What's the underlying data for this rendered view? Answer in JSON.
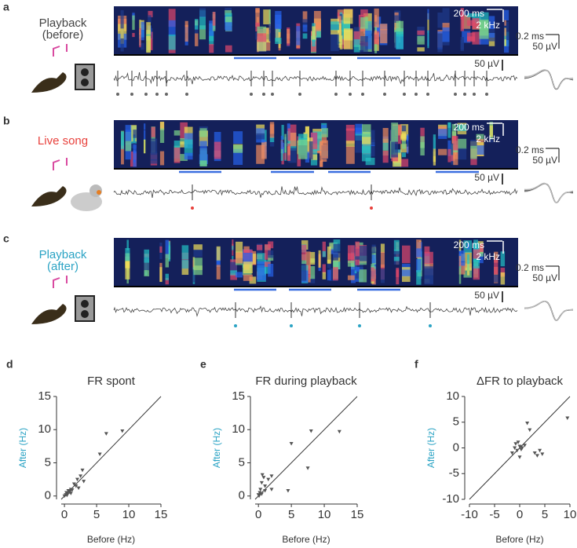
{
  "panels": [
    {
      "label": "a",
      "condition": [
        "Playback",
        "(before)"
      ],
      "condition_color": "#444444",
      "scale": {
        "time": "200 ms",
        "freq": "2 kHz",
        "voltage": "50 µV",
        "wave_time": "0.2 ms",
        "wave_voltage": "50 µV"
      }
    },
    {
      "label": "b",
      "condition": [
        "Live song"
      ],
      "condition_color": "#e8413c",
      "scale": {
        "time": "200 ms",
        "freq": "2 kHz",
        "voltage": "50 µV",
        "wave_time": "0.2 ms",
        "wave_voltage": "50 µV"
      }
    },
    {
      "label": "c",
      "condition": [
        "Playback",
        "(after)"
      ],
      "condition_color": "#2aa3c4",
      "scale": {
        "time": "200 ms",
        "freq": "2 kHz",
        "voltage": "50 µV",
        "wave_time": "0.2 ms",
        "wave_voltage": "50 µV"
      }
    }
  ],
  "chart_data": [
    {
      "type": "scatter",
      "panel_label": "d",
      "title": "FR spont",
      "xlabel": "Before (Hz)",
      "ylabel": "After (Hz)",
      "color": "#555555",
      "x": [
        0,
        0.2,
        0.3,
        0.5,
        0.6,
        0.8,
        1,
        1.2,
        1.5,
        1.8,
        2,
        2.2,
        2.5,
        2.8,
        3,
        5.5,
        6.5,
        9,
        0.4,
        1
      ],
      "y": [
        0,
        0.2,
        0.5,
        0.3,
        0.8,
        0.6,
        1,
        0.9,
        1.8,
        1.5,
        2.5,
        1.2,
        3,
        3.9,
        2.2,
        6.3,
        9.4,
        9.8,
        0.1,
        0.4
      ],
      "xlim": [
        -0.5,
        15
      ],
      "ylim": [
        -0.5,
        15
      ],
      "xticks": [
        0,
        5,
        10,
        15
      ],
      "yticks": [
        0,
        5,
        10,
        15
      ]
    },
    {
      "type": "scatter",
      "panel_label": "e",
      "title": "FR during playback",
      "xlabel": "Before (Hz)",
      "ylabel": "After (Hz)",
      "color": "#555555",
      "x": [
        0,
        0.2,
        0.3,
        0.5,
        0.8,
        1,
        1.5,
        2,
        0.1,
        0.5,
        1,
        4.5,
        5,
        7.5,
        8,
        12.3,
        2,
        0.6
      ],
      "y": [
        0.2,
        0.5,
        1,
        2,
        2.8,
        1.5,
        2.5,
        3,
        0,
        0.3,
        0.8,
        0.8,
        7.9,
        4.2,
        9.8,
        9.7,
        1,
        3.2
      ],
      "xlim": [
        -0.5,
        15
      ],
      "ylim": [
        -0.5,
        15
      ],
      "xticks": [
        0,
        5,
        10,
        15
      ],
      "yticks": [
        0,
        5,
        10,
        15
      ]
    },
    {
      "type": "scatter",
      "panel_label": "f",
      "title": "ΔFR to playback",
      "xlabel": "Before (Hz)",
      "ylabel": "After (Hz)",
      "color": "#555555",
      "x": [
        -1,
        -0.5,
        0,
        0.5,
        -1.5,
        0.3,
        1,
        -0.8,
        2,
        3,
        3.5,
        4,
        4.5,
        9.5,
        1.5,
        0,
        -0.3
      ],
      "y": [
        0,
        -0.5,
        0.3,
        0,
        -1,
        -0.3,
        0.5,
        0.8,
        3.5,
        -1,
        -1.5,
        -0.5,
        -1.2,
        5.8,
        4.8,
        -1.8,
        1.1
      ],
      "xlim": [
        -10,
        10
      ],
      "ylim": [
        -10,
        10
      ],
      "xticks": [
        -10,
        -5,
        0,
        5,
        10
      ],
      "yticks": [
        -10,
        -5,
        0,
        5,
        10
      ]
    }
  ]
}
